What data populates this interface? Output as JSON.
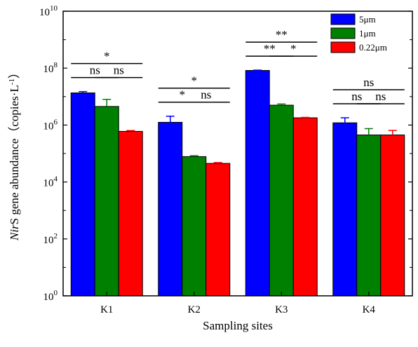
{
  "chart_data": {
    "type": "bar",
    "title": "",
    "xlabel": "Sampling sites",
    "ylabel": {
      "italic": "Nir",
      "rest": "S gene abundance（copies·L",
      "sup": "-1",
      "close": "）"
    },
    "yscale": "log",
    "ylim_exp": [
      0,
      10
    ],
    "ytick_base": "10",
    "ytick_exponents": [
      "0",
      "2",
      "4",
      "6",
      "8",
      "10"
    ],
    "categories": [
      "K1",
      "K2",
      "K3",
      "K4"
    ],
    "series": [
      {
        "name": "5μm",
        "color": "#0000ff",
        "values": [
          13500000,
          1250000,
          83000000,
          1200000
        ],
        "errors": [
          1500000,
          800000,
          2000000,
          600000
        ]
      },
      {
        "name": "1μm",
        "color": "#008000",
        "values": [
          4500000,
          78000,
          5000000,
          450000
        ],
        "errors": [
          3500000,
          6000,
          500000,
          300000
        ]
      },
      {
        "name": "0.22μm",
        "color": "#ff0000",
        "values": [
          600000,
          45000,
          1800000,
          450000
        ],
        "errors": [
          40000,
          3000,
          60000,
          200000
        ]
      }
    ],
    "legend_position": "top-right",
    "significance": [
      {
        "category": 0,
        "pairs": [
          {
            "from": 0,
            "to": 1,
            "label": "ns"
          },
          {
            "from": 1,
            "to": 2,
            "label": "ns"
          }
        ],
        "overall": "*"
      },
      {
        "category": 1,
        "pairs": [
          {
            "from": 0,
            "to": 1,
            "label": "*"
          },
          {
            "from": 1,
            "to": 2,
            "label": "ns"
          }
        ],
        "overall": "*"
      },
      {
        "category": 2,
        "pairs": [
          {
            "from": 0,
            "to": 1,
            "label": "**"
          },
          {
            "from": 1,
            "to": 2,
            "label": "*"
          }
        ],
        "overall": "**"
      },
      {
        "category": 3,
        "pairs": [
          {
            "from": 0,
            "to": 1,
            "label": "ns"
          },
          {
            "from": 1,
            "to": 2,
            "label": "ns"
          }
        ],
        "overall": "ns"
      }
    ]
  }
}
